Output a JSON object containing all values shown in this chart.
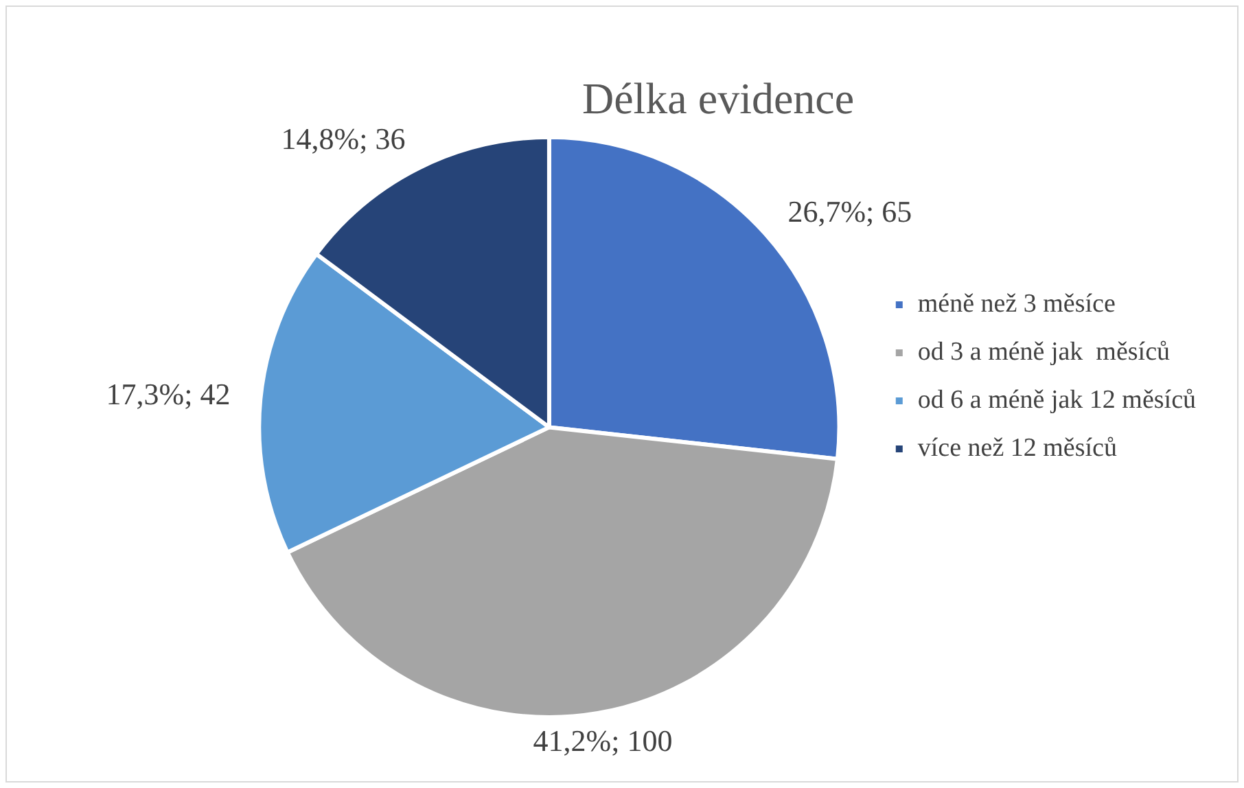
{
  "chart_data": {
    "type": "pie",
    "title": "Délka evidence",
    "categories": [
      "méně než 3 měsíce",
      "od 3 a méně jak  měsíců",
      "od 6 a méně jak 12 měsíců",
      "více než 12 měsíců"
    ],
    "values": [
      65,
      100,
      42,
      36
    ],
    "colors": [
      "#4472c4",
      "#a5a5a5",
      "#5b9bd5",
      "#264478"
    ],
    "value_labels": [
      "26,7%; 65",
      "41,2%; 100",
      "17,3%; 42",
      "14,8%; 36"
    ],
    "legend": "right"
  }
}
